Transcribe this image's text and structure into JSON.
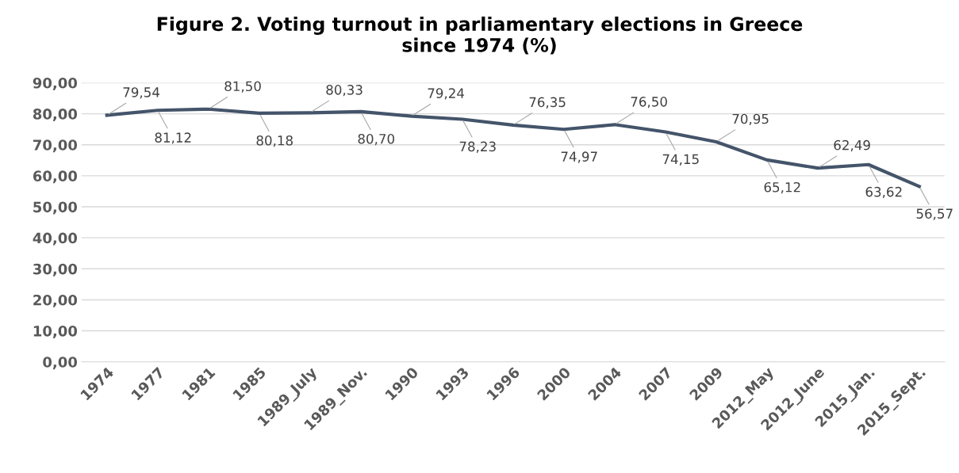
{
  "chart_data": {
    "type": "line",
    "title": "Figure 2. Voting turnout in parliamentary elections in Greece\nsince 1974 (%)",
    "categories": [
      "1974",
      "1977",
      "1981",
      "1985",
      "1989_July",
      "1989_Nov.",
      "1990",
      "1993",
      "1996",
      "2000",
      "2004",
      "2007",
      "2009",
      "2012_May",
      "2012_June",
      "2015_Jan.",
      "2015_Sept."
    ],
    "series": [
      {
        "color": "#44546a",
        "values": [
          79.54,
          81.12,
          81.5,
          80.18,
          80.33,
          80.7,
          79.24,
          78.23,
          76.35,
          74.97,
          76.5,
          74.15,
          70.95,
          65.12,
          62.49,
          63.62,
          56.57
        ],
        "value_labels": [
          "79,54",
          "81,12",
          "81,50",
          "80,18",
          "80,33",
          "80,70",
          "79,24",
          "78,23",
          "76,35",
          "74,97",
          "76,50",
          "74,15",
          "70,95",
          "65,12",
          "62,49",
          "63,62",
          "56,57"
        ]
      }
    ],
    "ylim": [
      0,
      90
    ],
    "yticks": [
      {
        "value": 0,
        "label": "0,00"
      },
      {
        "value": 10,
        "label": "10,00"
      },
      {
        "value": 20,
        "label": "20,00"
      },
      {
        "value": 30,
        "label": "30,00"
      },
      {
        "value": 40,
        "label": "40,00"
      },
      {
        "value": 50,
        "label": "50,00"
      },
      {
        "value": 60,
        "label": "60,00"
      },
      {
        "value": 70,
        "label": "70,00"
      },
      {
        "value": 80,
        "label": "80,00"
      },
      {
        "value": 90,
        "label": "90,00"
      }
    ],
    "grid": "y",
    "marker": "none",
    "line_style": "solid"
  }
}
